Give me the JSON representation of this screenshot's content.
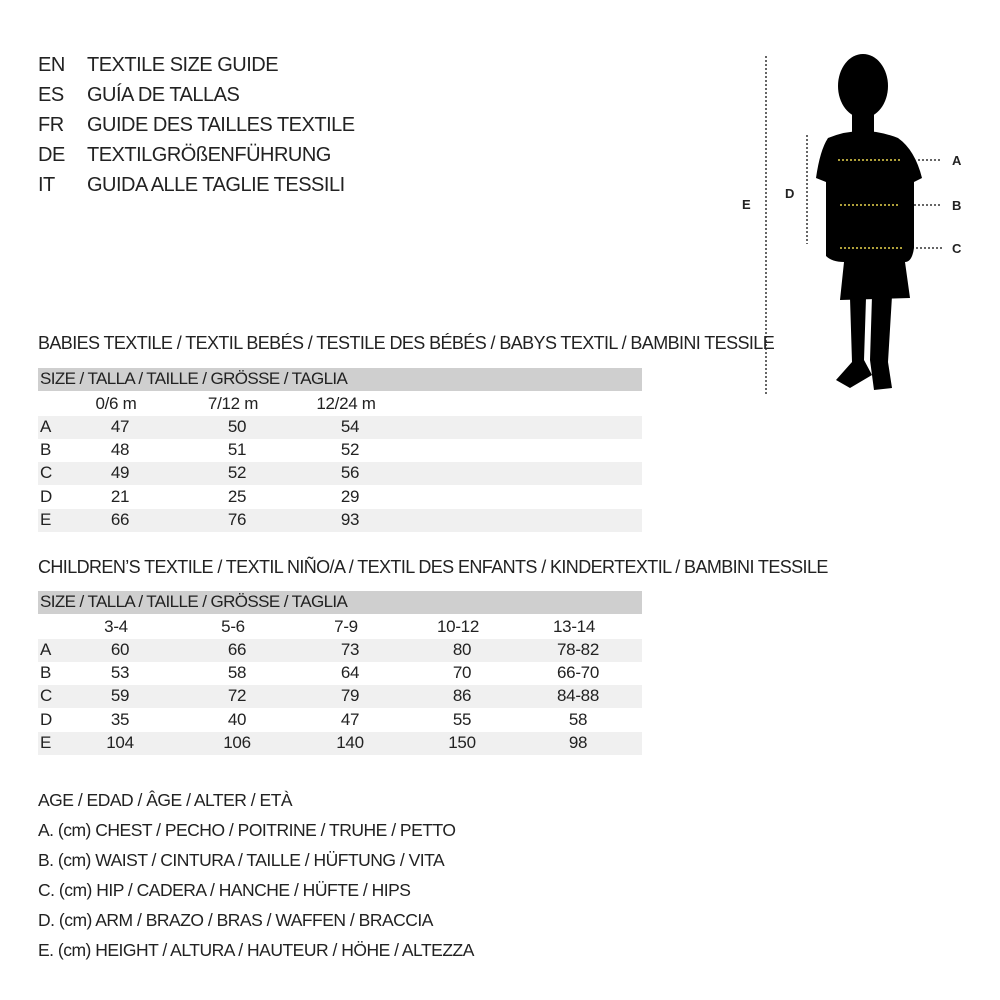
{
  "titles": [
    {
      "code": "EN",
      "text": "TEXTILE SIZE GUIDE"
    },
    {
      "code": "ES",
      "text": "GUÍA DE TALLAS"
    },
    {
      "code": "FR",
      "text": "GUIDE DES TAILLES TEXTILE"
    },
    {
      "code": "DE",
      "text": "TEXTILGRÖßENFÜHRUNG"
    },
    {
      "code": "IT",
      "text": "GUIDA ALLE TAGLIE TESSILI"
    }
  ],
  "figure": {
    "labels": {
      "a": "A",
      "b": "B",
      "c": "C",
      "d": "D",
      "e": "E"
    },
    "measure_line_color": "#e8d44d"
  },
  "babies": {
    "title": "BABIES TEXTILE / TEXTIL BEBÉS / TESTILE DES BÉBÉS / BABYS TEXTIL / BAMBINI TESSILE",
    "header": "SIZE / TALLA / TAILLE / GRÖSSE / TAGLIA",
    "columns": [
      "0/6 m",
      "7/12 m",
      "12/24 m"
    ],
    "rows": [
      {
        "label": "A",
        "values": [
          "47",
          "50",
          "54"
        ]
      },
      {
        "label": "B",
        "values": [
          "48",
          "51",
          "52"
        ]
      },
      {
        "label": "C",
        "values": [
          "49",
          "52",
          "56"
        ]
      },
      {
        "label": "D",
        "values": [
          "21",
          "25",
          "29"
        ]
      },
      {
        "label": "E",
        "values": [
          "66",
          "76",
          "93"
        ]
      }
    ]
  },
  "children": {
    "title": "CHILDREN’S TEXTILE / TEXTIL NIÑO/A / TEXTIL DES ENFANTS / KINDERTEXTIL / BAMBINI TESSILE",
    "header": "SIZE / TALLA / TAILLE / GRÖSSE / TAGLIA",
    "columns": [
      "3-4",
      "5-6",
      "7-9",
      "10-12",
      "13-14"
    ],
    "rows": [
      {
        "label": "A",
        "values": [
          "60",
          "66",
          "73",
          "80",
          "78-82"
        ]
      },
      {
        "label": "B",
        "values": [
          "53",
          "58",
          "64",
          "70",
          "66-70"
        ]
      },
      {
        "label": "C",
        "values": [
          "59",
          "72",
          "79",
          "86",
          "84-88"
        ]
      },
      {
        "label": "D",
        "values": [
          "35",
          "40",
          "47",
          "55",
          "58"
        ]
      },
      {
        "label": "E",
        "values": [
          "104",
          "106",
          "140",
          "150",
          "98"
        ]
      }
    ]
  },
  "legend": [
    "AGE / EDAD / ÂGE / ALTER / ETÀ",
    "A. (cm) CHEST / PECHO / POITRINE / TRUHE / PETTO",
    "B. (cm) WAIST / CINTURA / TAILLE / HÜFTUNG / VITA",
    "C. (cm) HIP / CADERA / HANCHE / HÜFTE / HIPS",
    "D. (cm) ARM / BRAZO / BRAS / WAFFEN / BRACCIA",
    "E. (cm) HEIGHT / ALTURA / HAUTEUR / HÖHE / ALTEZZA"
  ]
}
